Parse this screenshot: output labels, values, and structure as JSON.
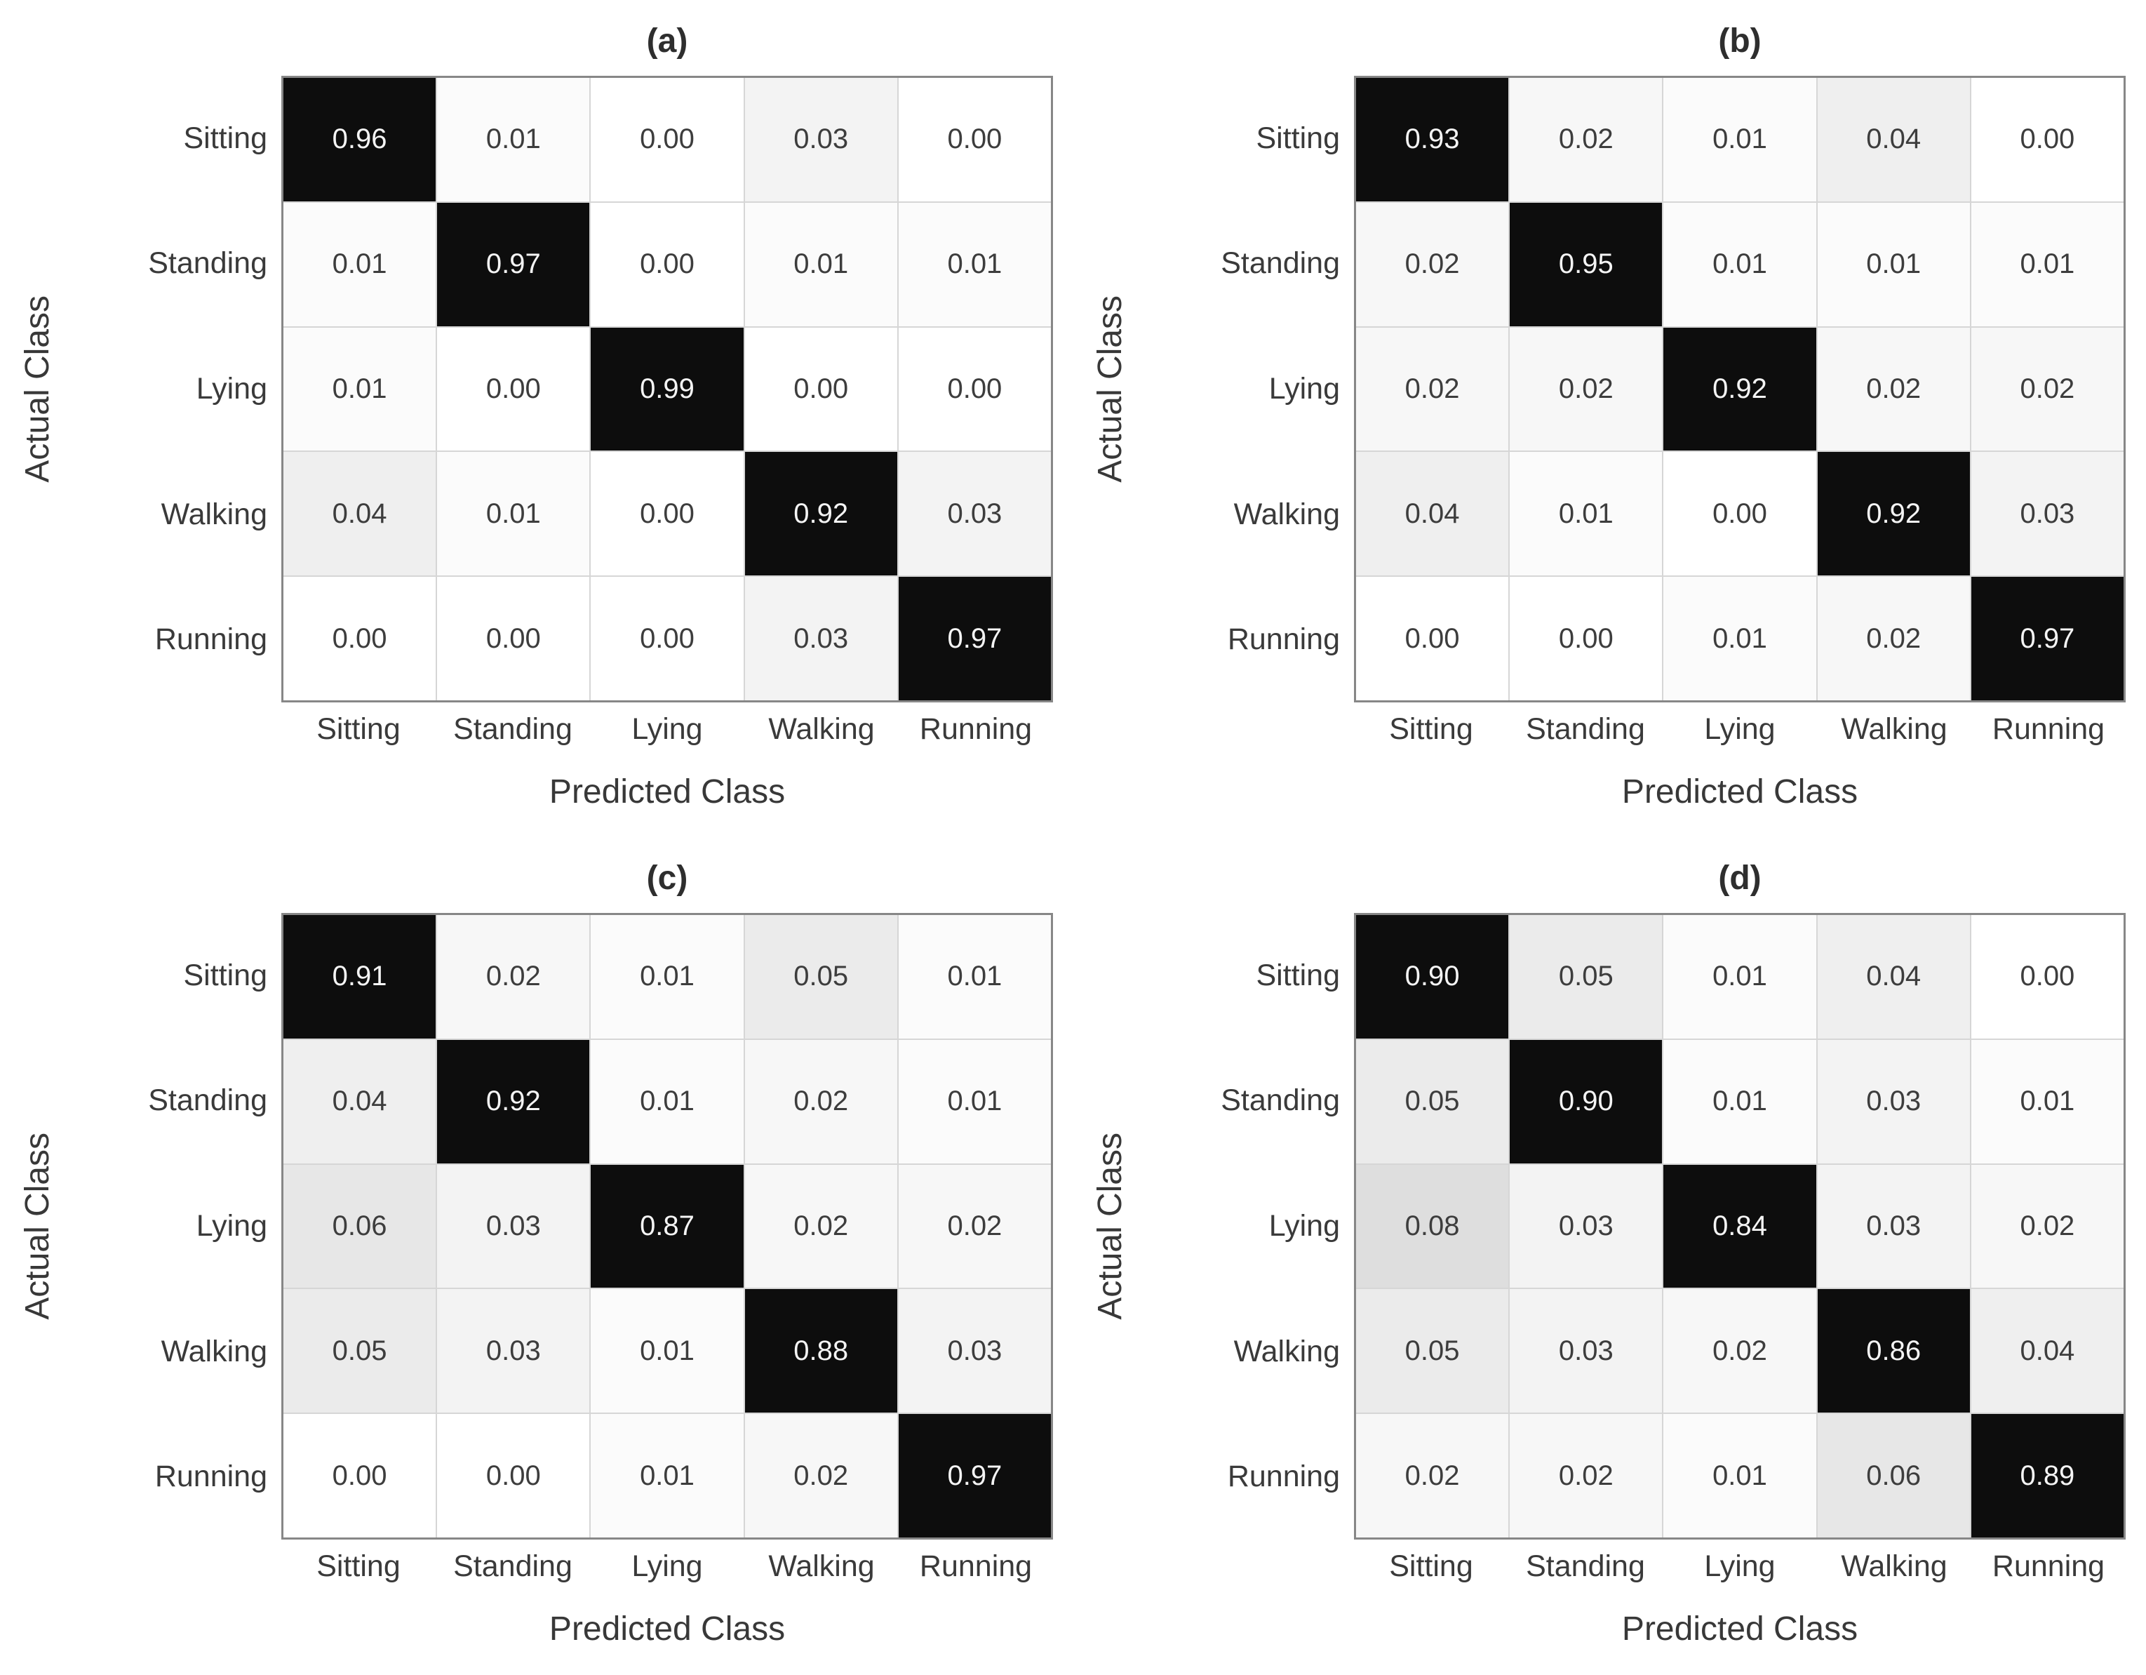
{
  "figure": {
    "ylabel": "Actual Class",
    "xlabel": "Predicted Class"
  },
  "colors": {
    "diag_bg": "#0d0d0d",
    "diag_text": "#f4f4f4",
    "cell_text": "#3d3d3d",
    "grid_line": "#d6d6d6",
    "border": "#878787",
    "label_text": "#3a3a3a"
  },
  "chart_data": [
    {
      "type": "heatmap",
      "title": "(a)",
      "xlabel": "Predicted Class",
      "ylabel": "Actual Class",
      "categories": [
        "Sitting",
        "Standing",
        "Lying",
        "Walking",
        "Running"
      ],
      "rows": [
        [
          0.96,
          0.01,
          0.0,
          0.03,
          0.0
        ],
        [
          0.01,
          0.97,
          0.0,
          0.01,
          0.01
        ],
        [
          0.01,
          0.0,
          0.99,
          0.0,
          0.0
        ],
        [
          0.04,
          0.01,
          0.0,
          0.92,
          0.03
        ],
        [
          0.0,
          0.0,
          0.0,
          0.03,
          0.97
        ]
      ]
    },
    {
      "type": "heatmap",
      "title": "(b)",
      "xlabel": "Predicted Class",
      "ylabel": "Actual Class",
      "categories": [
        "Sitting",
        "Standing",
        "Lying",
        "Walking",
        "Running"
      ],
      "rows": [
        [
          0.93,
          0.02,
          0.01,
          0.04,
          0.0
        ],
        [
          0.02,
          0.95,
          0.01,
          0.01,
          0.01
        ],
        [
          0.02,
          0.02,
          0.92,
          0.02,
          0.02
        ],
        [
          0.04,
          0.01,
          0.0,
          0.92,
          0.03
        ],
        [
          0.0,
          0.0,
          0.01,
          0.02,
          0.97
        ]
      ]
    },
    {
      "type": "heatmap",
      "title": "(c)",
      "xlabel": "Predicted Class",
      "ylabel": "Actual Class",
      "categories": [
        "Sitting",
        "Standing",
        "Lying",
        "Walking",
        "Running"
      ],
      "rows": [
        [
          0.91,
          0.02,
          0.01,
          0.05,
          0.01
        ],
        [
          0.04,
          0.92,
          0.01,
          0.02,
          0.01
        ],
        [
          0.06,
          0.03,
          0.87,
          0.02,
          0.02
        ],
        [
          0.05,
          0.03,
          0.01,
          0.88,
          0.03
        ],
        [
          0.0,
          0.0,
          0.01,
          0.02,
          0.97
        ]
      ]
    },
    {
      "type": "heatmap",
      "title": "(d)",
      "xlabel": "Predicted Class",
      "ylabel": "Actual Class",
      "categories": [
        "Sitting",
        "Standing",
        "Lying",
        "Walking",
        "Running"
      ],
      "rows": [
        [
          0.9,
          0.05,
          0.01,
          0.04,
          0.0
        ],
        [
          0.05,
          0.9,
          0.01,
          0.03,
          0.01
        ],
        [
          0.08,
          0.03,
          0.84,
          0.03,
          0.02
        ],
        [
          0.05,
          0.03,
          0.02,
          0.86,
          0.04
        ],
        [
          0.02,
          0.02,
          0.01,
          0.06,
          0.89
        ]
      ]
    }
  ]
}
